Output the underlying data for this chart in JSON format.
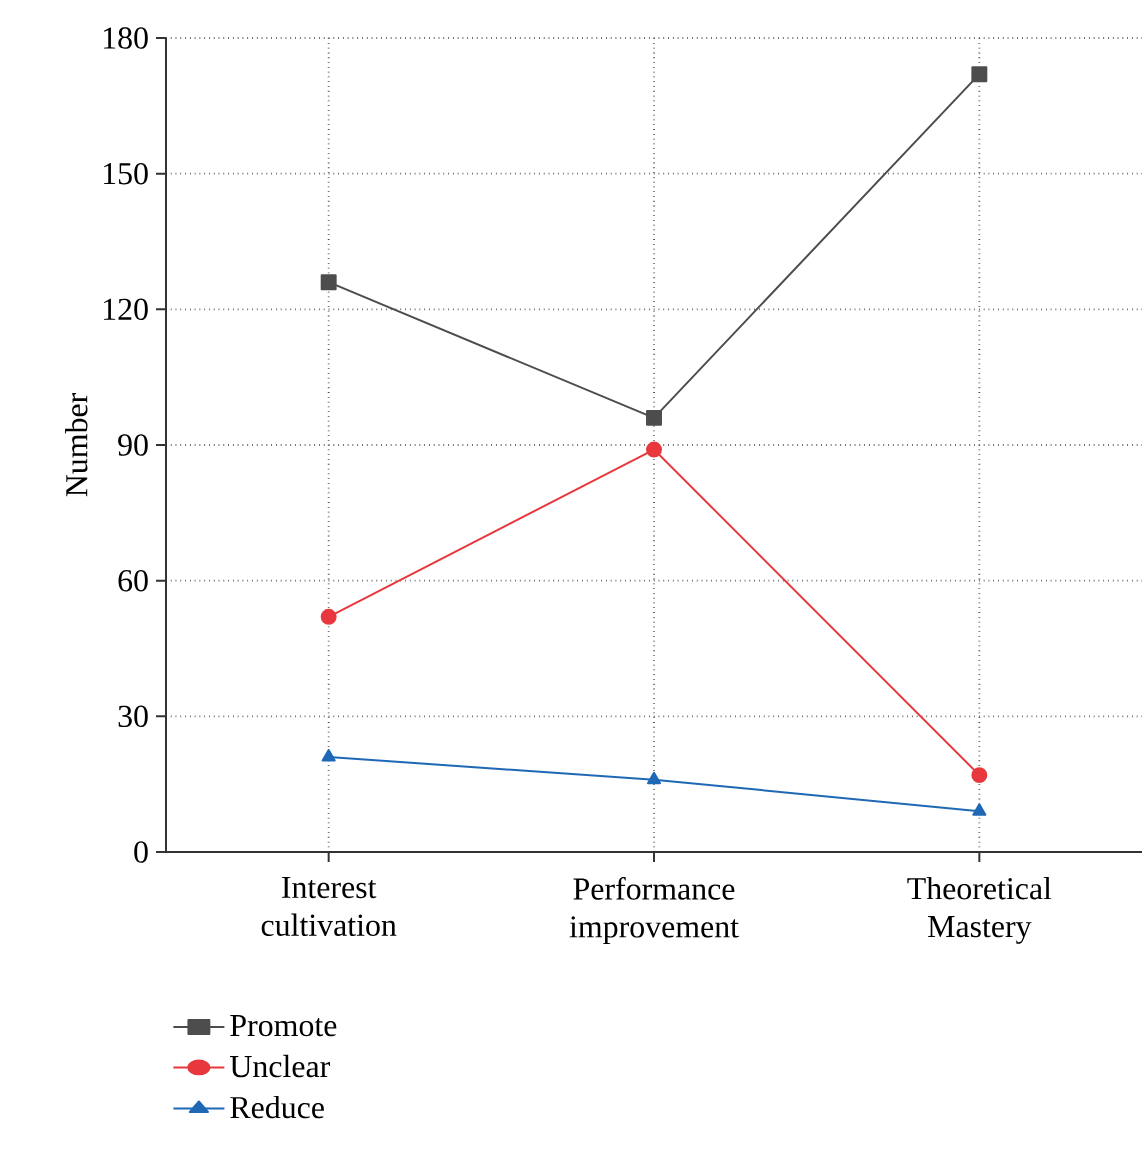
{
  "chart_data": {
    "type": "line",
    "ylabel": "Number",
    "categories": [
      "Interest cultivation",
      "Performance improvement",
      "Theoretical Mastery"
    ],
    "series": [
      {
        "name": "Promote",
        "color": "#4d4d4d",
        "marker": "square",
        "values": [
          126,
          96,
          172
        ]
      },
      {
        "name": "Unclear",
        "color": "#e8383d",
        "marker": "circle",
        "values": [
          52,
          89,
          17
        ]
      },
      {
        "name": "Reduce",
        "color": "#1f68b5",
        "marker": "triangle",
        "values": [
          21,
          16,
          9
        ]
      }
    ],
    "ylim": [
      0,
      180
    ],
    "yticks": [
      0,
      30,
      60,
      90,
      120,
      150,
      180
    ],
    "grid": true,
    "legend": "bottom",
    "line_style": "solid"
  }
}
